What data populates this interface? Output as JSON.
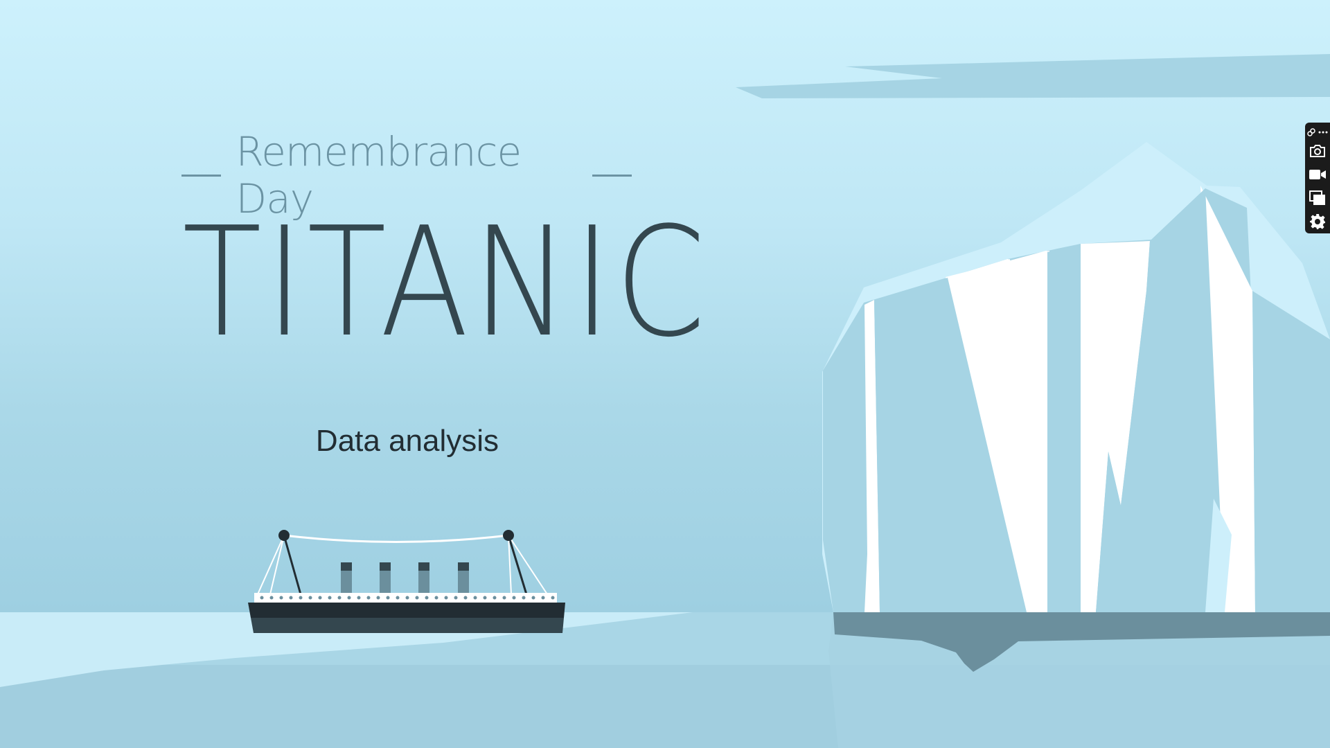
{
  "slide": {
    "eyebrow": "Remembrance Day",
    "title": "TITANIC",
    "tagline": "Data analysis"
  },
  "colors": {
    "sky_top": "#cdf1fc",
    "sea": "#a6d4e4",
    "iceberg_face": "#a6d4e4",
    "iceberg_highlight": "#ffffff",
    "iceberg_edge": "#cdeffb",
    "iceberg_shadow": "#6b8f9d",
    "hull": "#2b3a41",
    "title_text": "#34474f",
    "eyebrow_text": "#6b93a3"
  },
  "toolbar": {
    "items": [
      {
        "name": "link-icon"
      },
      {
        "name": "more-icon"
      },
      {
        "name": "camera-icon"
      },
      {
        "name": "video-icon"
      },
      {
        "name": "windows-icon"
      },
      {
        "name": "gear-icon"
      }
    ]
  }
}
